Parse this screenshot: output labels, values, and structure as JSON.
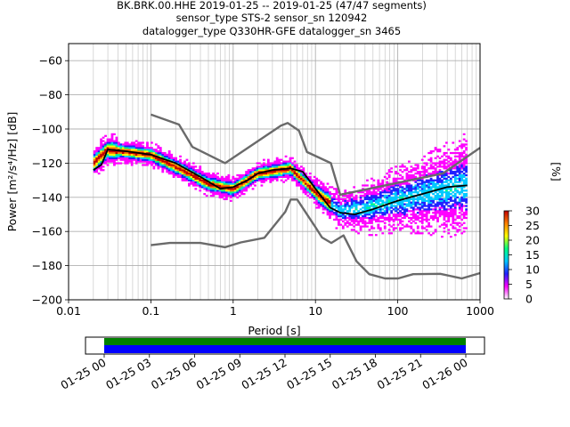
{
  "title_lines": [
    "BK.BRK.00.HHE   2019-01-25 -- 2019-01-25  (47/47 segments)",
    "sensor_type STS-2 sensor_sn 120942",
    "datalogger_type Q330HR-GFE datalogger_sn 3465"
  ],
  "chart_data": [
    {
      "type": "heatmap",
      "title": "BK.BRK.00.HHE   2019-01-25 -- 2019-01-25  (47/47 segments)",
      "xlabel": "Period [s]",
      "ylabel": "Power [m²/s⁴/Hz] [dB]",
      "xscale": "log",
      "xlim": [
        0.01,
        1000
      ],
      "ylim": [
        -200,
        -50
      ],
      "x_ticks": [
        0.01,
        0.1,
        1,
        10,
        100,
        1000
      ],
      "x_tick_labels": [
        "0.01",
        "0.1",
        "1",
        "10",
        "100",
        "1000"
      ],
      "y_ticks": [
        -60,
        -80,
        -100,
        -120,
        -140,
        -160,
        -180,
        -200
      ],
      "grid": true,
      "colorbar": {
        "label": "[%]",
        "range": [
          0,
          30
        ],
        "ticks": [
          0,
          5,
          10,
          15,
          20,
          25,
          30
        ],
        "colors": [
          "#ffffff",
          "#ff00ff",
          "#2020ff",
          "#00c8ff",
          "#00ff80",
          "#ffff00",
          "#ff8000",
          "#c00000"
        ]
      },
      "series": [
        {
          "name": "",
          "role": "high noise model",
          "color": "#6a6a6a",
          "points": [
            [
              0.1,
              -91.5
            ],
            [
              0.22,
              -97.4
            ],
            [
              0.32,
              -110.5
            ],
            [
              0.8,
              -120
            ],
            [
              3.8,
              -98
            ],
            [
              4.6,
              -96.5
            ],
            [
              6.3,
              -101
            ],
            [
              7.9,
              -113.5
            ],
            [
              15.4,
              -120
            ],
            [
              20,
              -138.5
            ],
            [
              354.8,
              -126
            ],
            [
              1000,
              -111
            ]
          ]
        },
        {
          "name": "",
          "role": "low noise model",
          "color": "#6a6a6a",
          "points": [
            [
              0.1,
              -168
            ],
            [
              0.17,
              -166.7
            ],
            [
              0.4,
              -166.7
            ],
            [
              0.8,
              -169.2
            ],
            [
              1.24,
              -166.4
            ],
            [
              2.4,
              -163.7
            ],
            [
              4.3,
              -148.5
            ],
            [
              5,
              -141.3
            ],
            [
              6,
              -141.3
            ],
            [
              10,
              -157.5
            ],
            [
              12,
              -163.5
            ],
            [
              15.6,
              -166.7
            ],
            [
              21.9,
              -162.3
            ],
            [
              31.6,
              -177.5
            ],
            [
              45,
              -185
            ],
            [
              70,
              -187.5
            ],
            [
              101,
              -187.5
            ],
            [
              154,
              -185
            ],
            [
              328,
              -184.8
            ],
            [
              600,
              -187.5
            ],
            [
              10000,
              -184.4
            ]
          ]
        },
        {
          "name": "",
          "role": "mean",
          "color": "#000000",
          "points": [
            [
              0.02,
              -124
            ],
            [
              0.025,
              -121
            ],
            [
              0.03,
              -112
            ],
            [
              0.05,
              -113
            ],
            [
              0.1,
              -115
            ],
            [
              0.2,
              -120
            ],
            [
              0.4,
              -128
            ],
            [
              0.7,
              -135
            ],
            [
              1,
              -134
            ],
            [
              1.5,
              -130
            ],
            [
              2,
              -126
            ],
            [
              3,
              -124
            ],
            [
              5,
              -123
            ],
            [
              7,
              -125
            ],
            [
              10,
              -135
            ],
            [
              15,
              -146
            ],
            [
              20,
              -149
            ],
            [
              30,
              -150
            ],
            [
              50,
              -147
            ],
            [
              100,
              -142
            ],
            [
              200,
              -138
            ],
            [
              400,
              -134
            ],
            [
              700,
              -133
            ]
          ]
        }
      ],
      "density_band": {
        "period_range": [
          0.02,
          700
        ],
        "center_db": [
          -120,
          -112,
          -115,
          -122,
          -132,
          -135,
          -126,
          -123,
          -137,
          -148,
          -145,
          -138,
          -133
        ],
        "center_periods": [
          0.02,
          0.03,
          0.1,
          0.2,
          0.5,
          1,
          2,
          5,
          10,
          20,
          50,
          200,
          700
        ]
      }
    },
    {
      "type": "timeline",
      "name": "data coverage",
      "x_range": [
        "2019-01-25 00:00",
        "2019-01-26 00:00"
      ],
      "tick_labels": [
        "01-25 00",
        "01-25 03",
        "01-25 06",
        "01-25 09",
        "01-25 12",
        "01-25 15",
        "01-25 18",
        "01-25 21",
        "01-26 00"
      ],
      "available_color": "#008000",
      "used_color": "#0000ff",
      "available": [
        [
          "2019-01-25 00:00",
          "2019-01-26 00:00"
        ]
      ],
      "used": [
        [
          "2019-01-25 00:00",
          "2019-01-26 00:00"
        ]
      ]
    }
  ]
}
